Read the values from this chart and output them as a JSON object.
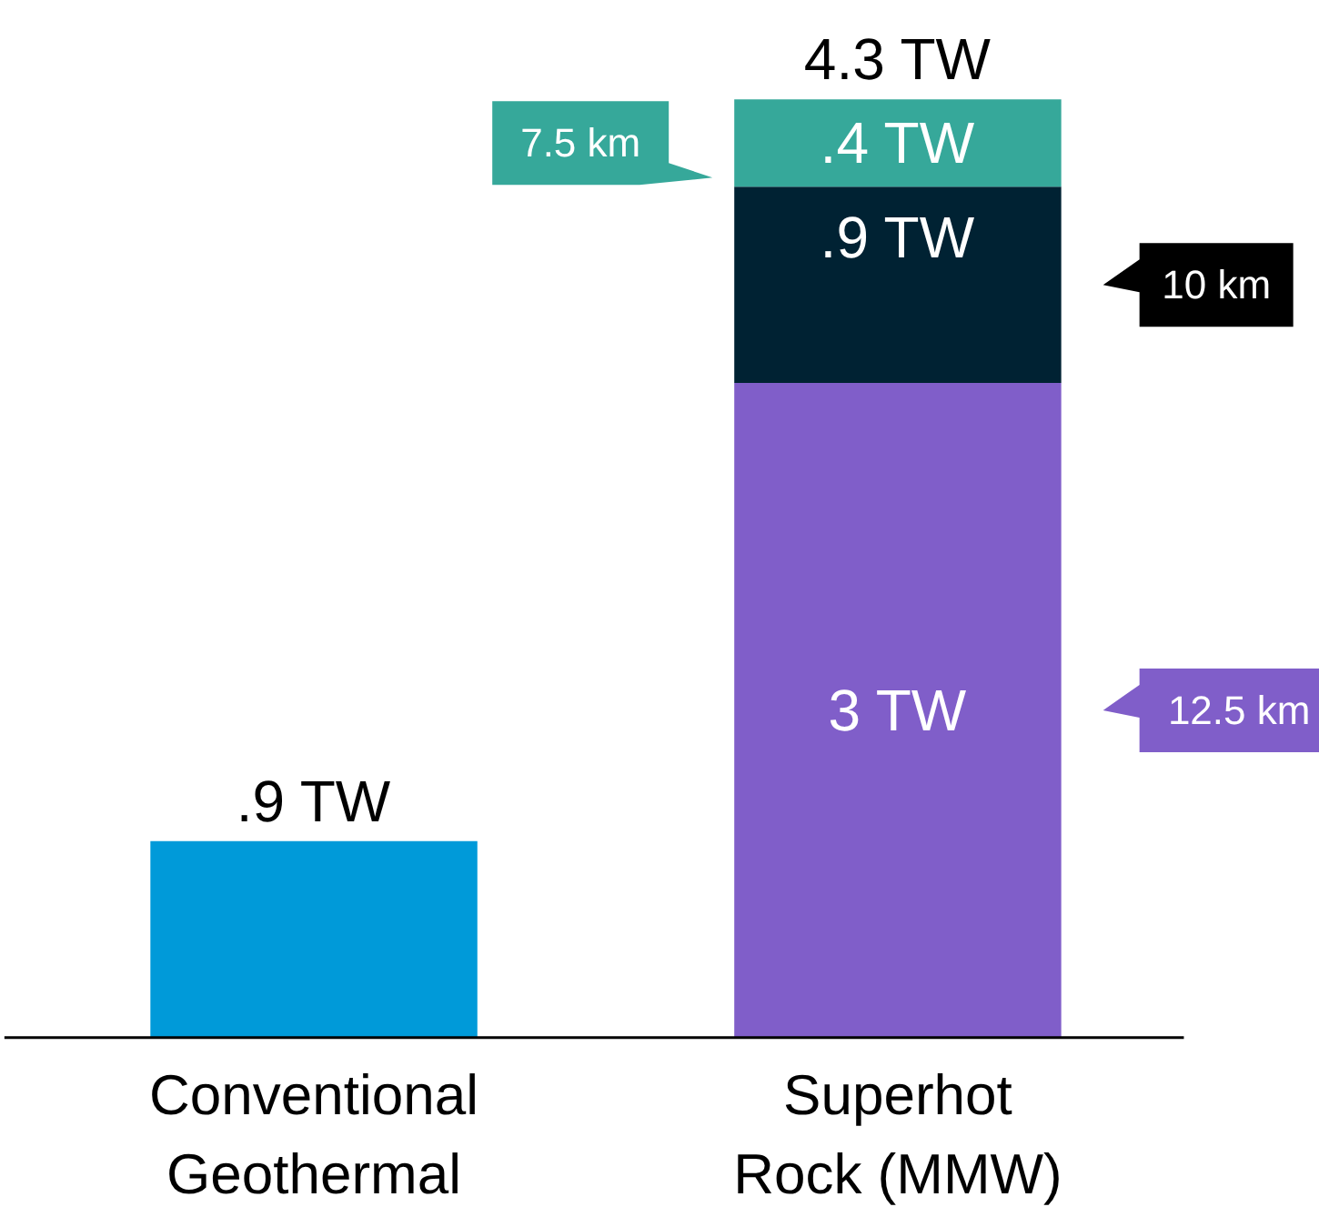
{
  "chart_data": {
    "type": "bar",
    "stacked": true,
    "categories": [
      "Conventional\nGeothermal",
      "Superhot\nRock (MMW)"
    ],
    "series": [
      {
        "color": "#009ad9",
        "values": [
          0.9,
          null
        ],
        "value_labels": [
          ".9 TW",
          null
        ]
      },
      {
        "name": "12.5 km",
        "color": "#805ec9",
        "values": [
          null,
          3
        ],
        "value_labels": [
          null,
          "3 TW"
        ]
      },
      {
        "name": "10 km",
        "color": "#002233",
        "values": [
          null,
          0.9
        ],
        "value_labels": [
          null,
          ".9 TW"
        ]
      },
      {
        "name": "7.5 km",
        "color": "#36a89a",
        "values": [
          null,
          0.4
        ],
        "value_labels": [
          null,
          ".4 TW"
        ]
      }
    ],
    "totals": [
      null,
      "4.3 TW"
    ],
    "grid": false
  }
}
